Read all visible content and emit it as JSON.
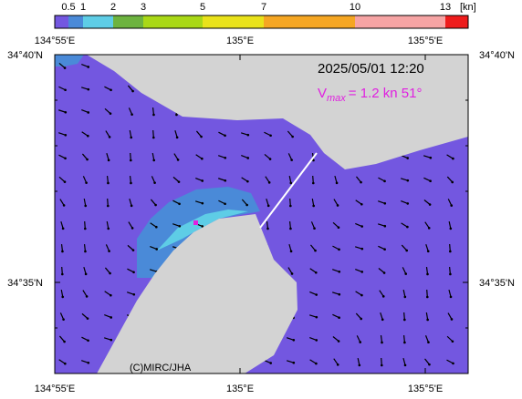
{
  "colorbar": {
    "unit": "[kn]",
    "labels": [
      "0.5",
      "1",
      "2",
      "3",
      "5",
      "7",
      "10",
      "13"
    ],
    "colors": [
      "#7357e0",
      "#4a8ad8",
      "#5ecde6",
      "#6db33f",
      "#a9d816",
      "#e9e21a",
      "#f5a623",
      "#f6a4a4",
      "#ee1c1c"
    ]
  },
  "longitudes": [
    "134°55'E",
    "135°E",
    "135°5'E"
  ],
  "latitudes": [
    "34°40'N",
    "34°35'N"
  ],
  "timestamp": "2025/05/01 12:20",
  "vmax": {
    "symbol": "V",
    "subscript": "max",
    "text": "= 1.2 kn 51°"
  },
  "credit": "(C)MIRC/JHA"
}
